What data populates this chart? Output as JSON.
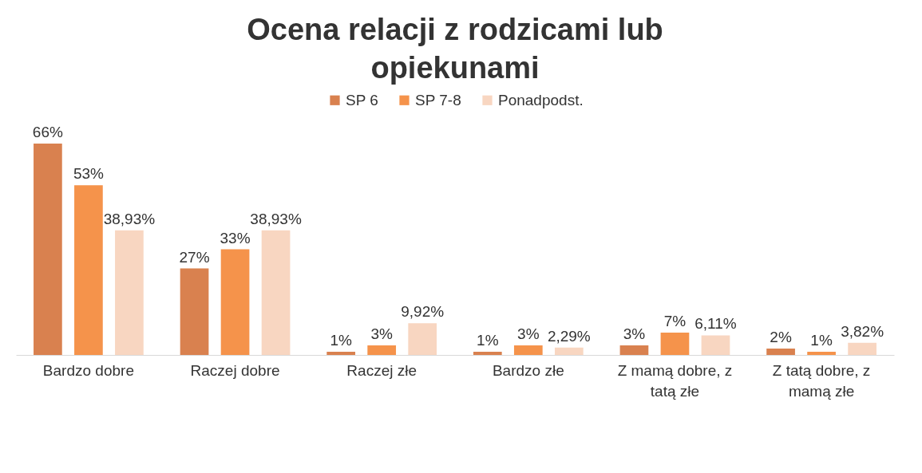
{
  "chart_data": {
    "type": "bar",
    "title": "Ocena relacji z rodzicami lub opiekunami",
    "categories": [
      "Bardzo dobre",
      "Raczej dobre",
      "Raczej złe",
      "Bardzo złe",
      "Z mamą dobre, z tatą złe",
      "Z tatą dobre, z mamą złe"
    ],
    "series": [
      {
        "name": "SP 6",
        "color": "#d9814f",
        "values": [
          66,
          27,
          1,
          1,
          3,
          2
        ],
        "value_labels": [
          "66%",
          "27%",
          "1%",
          "1%",
          "3%",
          "2%"
        ]
      },
      {
        "name": "SP 7-8",
        "color": "#f5934b",
        "values": [
          53,
          33,
          3,
          3,
          7,
          1
        ],
        "value_labels": [
          "53%",
          "33%",
          "3%",
          "3%",
          "7%",
          "1%"
        ]
      },
      {
        "name": "Ponadpodst.",
        "color": "#f8d6c1",
        "values": [
          38.93,
          38.93,
          9.92,
          2.29,
          6.11,
          3.82
        ],
        "value_labels": [
          "38,93%",
          "38,93%",
          "9,92%",
          "2,29%",
          "6,11%",
          "3,82%"
        ]
      }
    ],
    "legend": "top"
  }
}
